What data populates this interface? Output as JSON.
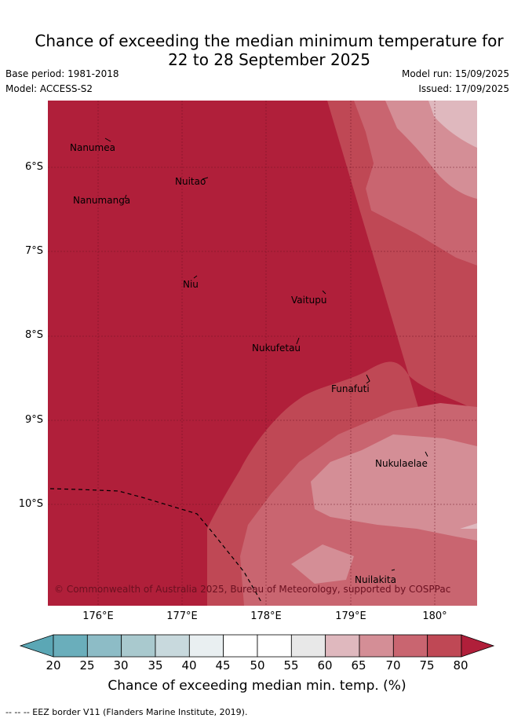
{
  "title": {
    "line1": "Chance of exceeding the median minimum temperature for",
    "line2": "22 to 28 September 2025"
  },
  "meta": {
    "base_period": "Base period: 1981-2018",
    "model": "Model: ACCESS-S2",
    "model_run": "Model run: 15/09/2025",
    "issued": "Issued: 17/09/2025"
  },
  "map": {
    "islands": [
      {
        "name": "Nanumea"
      },
      {
        "name": "Nuitao"
      },
      {
        "name": "Nanumanga"
      },
      {
        "name": "Niu"
      },
      {
        "name": "Vaitupu"
      },
      {
        "name": "Nukufetau"
      },
      {
        "name": "Funafuti"
      },
      {
        "name": "Nukulaelae"
      },
      {
        "name": "Nuilakita"
      }
    ],
    "copyright": "© Commonwealth of Australia 2025, Bureau of Meteorology, supported by COSPPac",
    "lat_ticks": [
      "6°S",
      "7°S",
      "8°S",
      "9°S",
      "10°S"
    ],
    "lon_ticks": [
      "176°E",
      "177°E",
      "178°E",
      "179°E",
      "180°"
    ]
  },
  "colorbar": {
    "labels": [
      "20",
      "25",
      "30",
      "35",
      "40",
      "45",
      "50",
      "55",
      "60",
      "65",
      "70",
      "75",
      "80"
    ],
    "colors": [
      "#5ba7b5",
      "#6aaebb",
      "#8dbcc6",
      "#a9c9ce",
      "#c8d9dd",
      "#e9eff1",
      "#ffffff",
      "#ffffff",
      "#e8e8e8",
      "#dfb8be",
      "#d48e96",
      "#c96570",
      "#bf4855",
      "#b01f3a"
    ],
    "title": "Chance of exceeding median min. temp. (%)"
  },
  "footnote": "--  --  -- EEZ border V11 (Flanders Marine Institute, 2019)."
}
